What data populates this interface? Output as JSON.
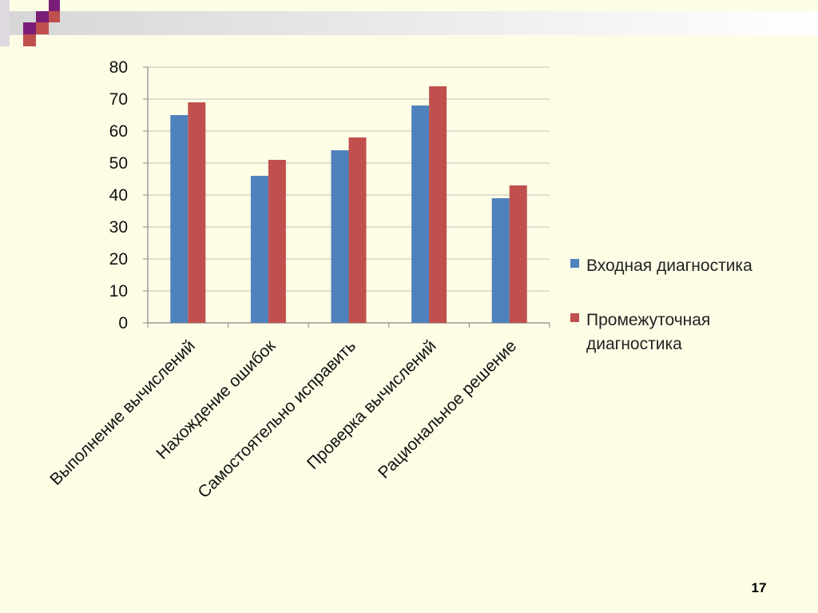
{
  "slide": {
    "number": "17"
  },
  "colors": {
    "background": "#fdfde6",
    "header_gradient_start": "#d9d9d9",
    "header_gradient_end": "#ffffff",
    "deco_purple": "#7b1e7a",
    "deco_red": "#c0504d",
    "gridline": "#bfbfbf",
    "axis": "#868686"
  },
  "chart_data": {
    "type": "bar",
    "title": "",
    "xlabel": "",
    "ylabel": "",
    "ylim": [
      0,
      80
    ],
    "yticks": [
      0,
      10,
      20,
      30,
      40,
      50,
      60,
      70,
      80
    ],
    "grid": true,
    "legend_position": "right",
    "categories": [
      "Выполнение вычислений",
      "Нахождение ошибок",
      "Самостоятельно исправить",
      "Проверка вычислений",
      "Рациональное решение"
    ],
    "series": [
      {
        "name": "Входная диагностика",
        "color": "#4f81bd",
        "values": [
          65,
          46,
          54,
          68,
          39
        ]
      },
      {
        "name": "Промежуточная диагностика",
        "color": "#c0504d",
        "values": [
          69,
          51,
          58,
          74,
          43
        ]
      }
    ],
    "legend_lines": [
      [
        "Входная диагностика"
      ],
      [
        "Промежуточная",
        "диагностика"
      ]
    ]
  }
}
